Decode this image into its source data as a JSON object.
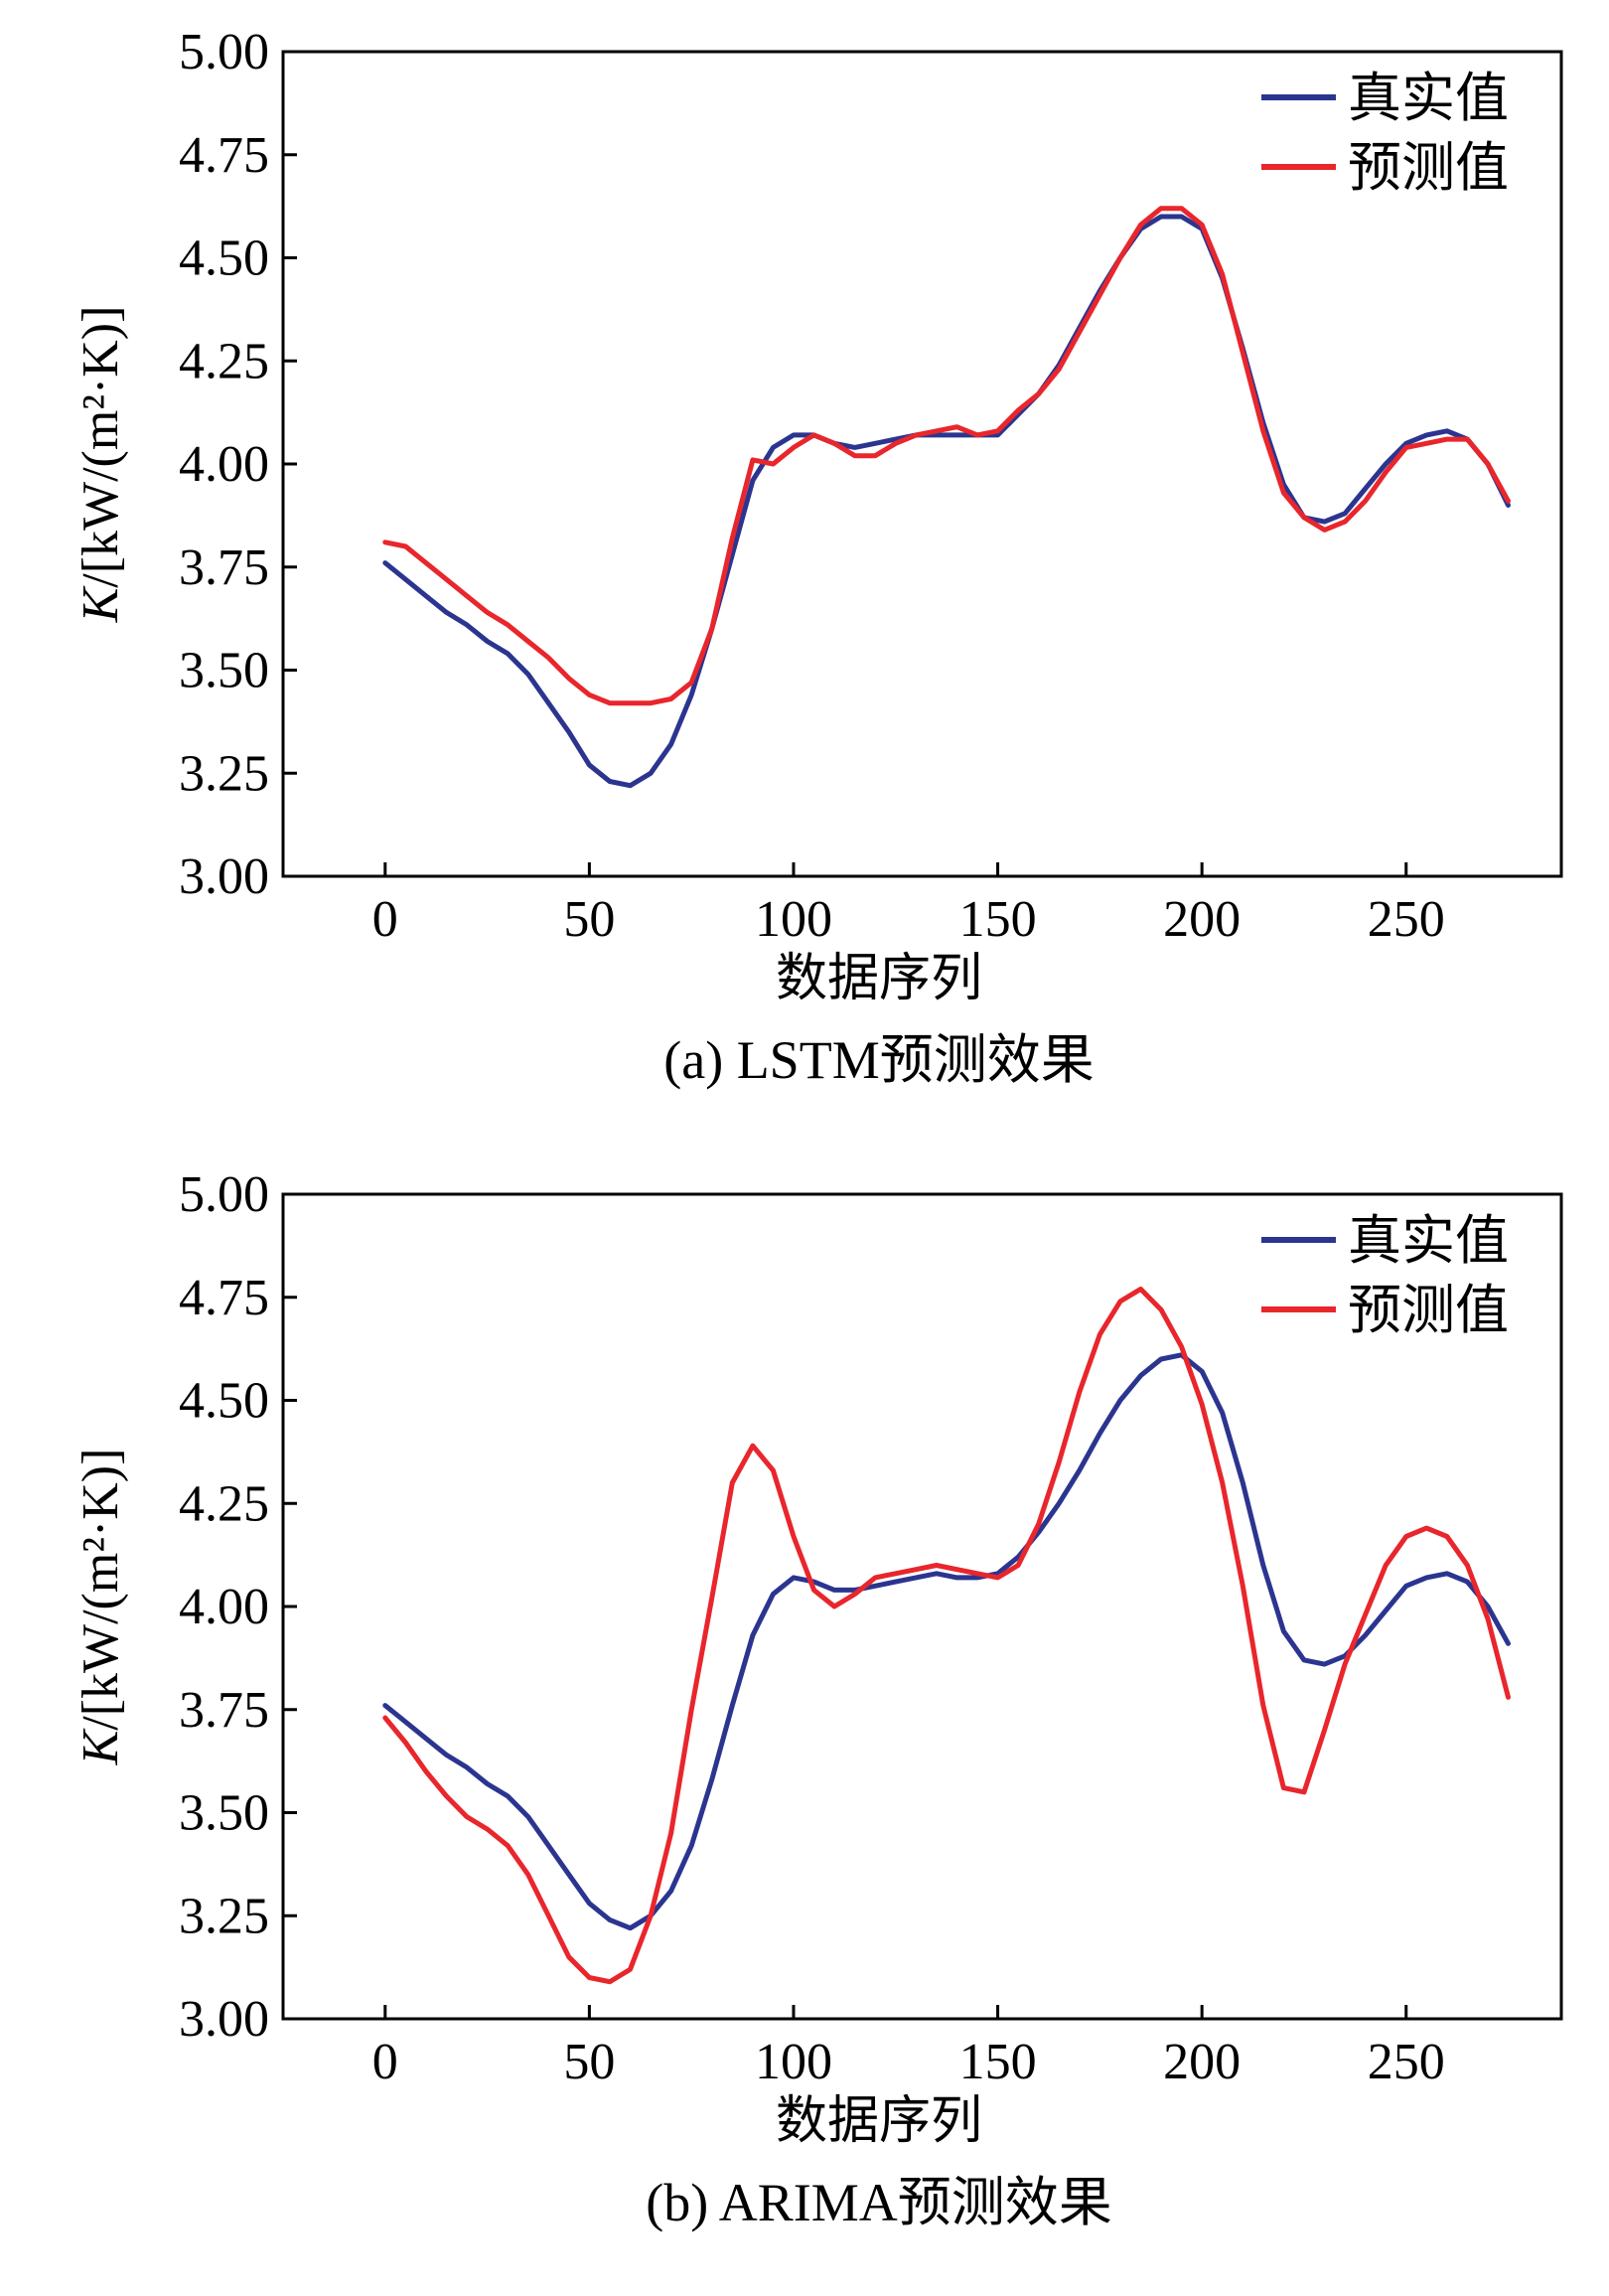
{
  "chart_data": [
    {
      "type": "line",
      "caption": "(a) LSTM预测效果",
      "xlabel": "数据序列",
      "ylabel_main": "K",
      "ylabel_rest": "/[kW/(m²·K)]",
      "xlim": [
        -25,
        288
      ],
      "ylim": [
        3.0,
        5.0
      ],
      "xticks": [
        "0",
        "50",
        "100",
        "150",
        "200",
        "250"
      ],
      "yticks": [
        "3.00",
        "3.25",
        "3.50",
        "3.75",
        "4.00",
        "4.25",
        "4.50",
        "4.75",
        "5.00"
      ],
      "grid": false,
      "legend_position": "top-right",
      "colors": {
        "real": "#2b3590",
        "pred": "#e8262c"
      },
      "series": [
        {
          "name": "真实值",
          "x": [
            0,
            5,
            10,
            15,
            20,
            25,
            30,
            35,
            40,
            45,
            50,
            55,
            60,
            65,
            70,
            75,
            80,
            85,
            90,
            95,
            100,
            105,
            110,
            115,
            120,
            125,
            130,
            135,
            140,
            145,
            150,
            155,
            160,
            165,
            170,
            175,
            180,
            185,
            190,
            195,
            200,
            205,
            210,
            215,
            220,
            225,
            230,
            235,
            240,
            245,
            250,
            255,
            260,
            265,
            270,
            275
          ],
          "values": [
            3.76,
            3.72,
            3.68,
            3.64,
            3.61,
            3.57,
            3.54,
            3.49,
            3.42,
            3.35,
            3.27,
            3.23,
            3.22,
            3.25,
            3.32,
            3.44,
            3.6,
            3.78,
            3.96,
            4.04,
            4.07,
            4.07,
            4.05,
            4.04,
            4.05,
            4.06,
            4.07,
            4.07,
            4.07,
            4.07,
            4.07,
            4.12,
            4.17,
            4.24,
            4.33,
            4.42,
            4.5,
            4.57,
            4.6,
            4.6,
            4.57,
            4.45,
            4.28,
            4.1,
            3.95,
            3.87,
            3.86,
            3.88,
            3.94,
            4.0,
            4.05,
            4.07,
            4.08,
            4.06,
            4.0,
            3.9
          ]
        },
        {
          "name": "预测值",
          "x": [
            0,
            5,
            10,
            15,
            20,
            25,
            30,
            35,
            40,
            45,
            50,
            55,
            60,
            65,
            70,
            75,
            80,
            85,
            90,
            95,
            100,
            105,
            110,
            115,
            120,
            125,
            130,
            135,
            140,
            145,
            150,
            155,
            160,
            165,
            170,
            175,
            180,
            185,
            190,
            195,
            200,
            205,
            210,
            215,
            220,
            225,
            230,
            235,
            240,
            245,
            250,
            255,
            260,
            265,
            270,
            275
          ],
          "values": [
            3.81,
            3.8,
            3.76,
            3.72,
            3.68,
            3.64,
            3.61,
            3.57,
            3.53,
            3.48,
            3.44,
            3.42,
            3.42,
            3.42,
            3.43,
            3.47,
            3.6,
            3.82,
            4.01,
            4.0,
            4.04,
            4.07,
            4.05,
            4.02,
            4.02,
            4.05,
            4.07,
            4.08,
            4.09,
            4.07,
            4.08,
            4.13,
            4.17,
            4.23,
            4.32,
            4.41,
            4.5,
            4.58,
            4.62,
            4.62,
            4.58,
            4.46,
            4.27,
            4.08,
            3.93,
            3.87,
            3.84,
            3.86,
            3.91,
            3.98,
            4.04,
            4.05,
            4.06,
            4.06,
            4.0,
            3.91
          ]
        }
      ]
    },
    {
      "type": "line",
      "caption": "(b) ARIMA预测效果",
      "xlabel": "数据序列",
      "ylabel_main": "K",
      "ylabel_rest": "/[kW/(m²·K)]",
      "xlim": [
        -25,
        288
      ],
      "ylim": [
        3.0,
        5.0
      ],
      "xticks": [
        "0",
        "50",
        "100",
        "150",
        "200",
        "250"
      ],
      "yticks": [
        "3.00",
        "3.25",
        "3.50",
        "3.75",
        "4.00",
        "4.25",
        "4.50",
        "4.75",
        "5.00"
      ],
      "grid": false,
      "legend_position": "top-right",
      "colors": {
        "real": "#2b3590",
        "pred": "#e8262c"
      },
      "series": [
        {
          "name": "真实值",
          "x": [
            0,
            5,
            10,
            15,
            20,
            25,
            30,
            35,
            40,
            45,
            50,
            55,
            60,
            65,
            70,
            75,
            80,
            85,
            90,
            95,
            100,
            105,
            110,
            115,
            120,
            125,
            130,
            135,
            140,
            145,
            150,
            155,
            160,
            165,
            170,
            175,
            180,
            185,
            190,
            195,
            200,
            205,
            210,
            215,
            220,
            225,
            230,
            235,
            240,
            245,
            250,
            255,
            260,
            265,
            270,
            275
          ],
          "values": [
            3.76,
            3.72,
            3.68,
            3.64,
            3.61,
            3.57,
            3.54,
            3.49,
            3.42,
            3.35,
            3.28,
            3.24,
            3.22,
            3.25,
            3.31,
            3.42,
            3.58,
            3.76,
            3.93,
            4.03,
            4.07,
            4.06,
            4.04,
            4.04,
            4.05,
            4.06,
            4.07,
            4.08,
            4.07,
            4.07,
            4.08,
            4.12,
            4.18,
            4.25,
            4.33,
            4.42,
            4.5,
            4.56,
            4.6,
            4.61,
            4.57,
            4.47,
            4.3,
            4.1,
            3.94,
            3.87,
            3.86,
            3.88,
            3.93,
            3.99,
            4.05,
            4.07,
            4.08,
            4.06,
            4.0,
            3.91
          ]
        },
        {
          "name": "预测值",
          "x": [
            0,
            5,
            10,
            15,
            20,
            25,
            30,
            35,
            40,
            45,
            50,
            55,
            60,
            65,
            70,
            75,
            80,
            85,
            90,
            95,
            100,
            105,
            110,
            115,
            120,
            125,
            130,
            135,
            140,
            145,
            150,
            155,
            160,
            165,
            170,
            175,
            180,
            185,
            190,
            195,
            200,
            205,
            210,
            215,
            220,
            225,
            230,
            235,
            240,
            245,
            250,
            255,
            260,
            265,
            270,
            275
          ],
          "values": [
            3.73,
            3.67,
            3.6,
            3.54,
            3.49,
            3.46,
            3.42,
            3.35,
            3.25,
            3.15,
            3.1,
            3.09,
            3.12,
            3.25,
            3.45,
            3.75,
            4.02,
            4.3,
            4.39,
            4.33,
            4.17,
            4.04,
            4.0,
            4.03,
            4.07,
            4.08,
            4.09,
            4.1,
            4.09,
            4.08,
            4.07,
            4.1,
            4.2,
            4.35,
            4.52,
            4.66,
            4.74,
            4.77,
            4.72,
            4.63,
            4.49,
            4.3,
            4.05,
            3.76,
            3.56,
            3.55,
            3.7,
            3.86,
            3.98,
            4.1,
            4.17,
            4.19,
            4.17,
            4.1,
            3.97,
            3.78
          ]
        }
      ]
    }
  ]
}
